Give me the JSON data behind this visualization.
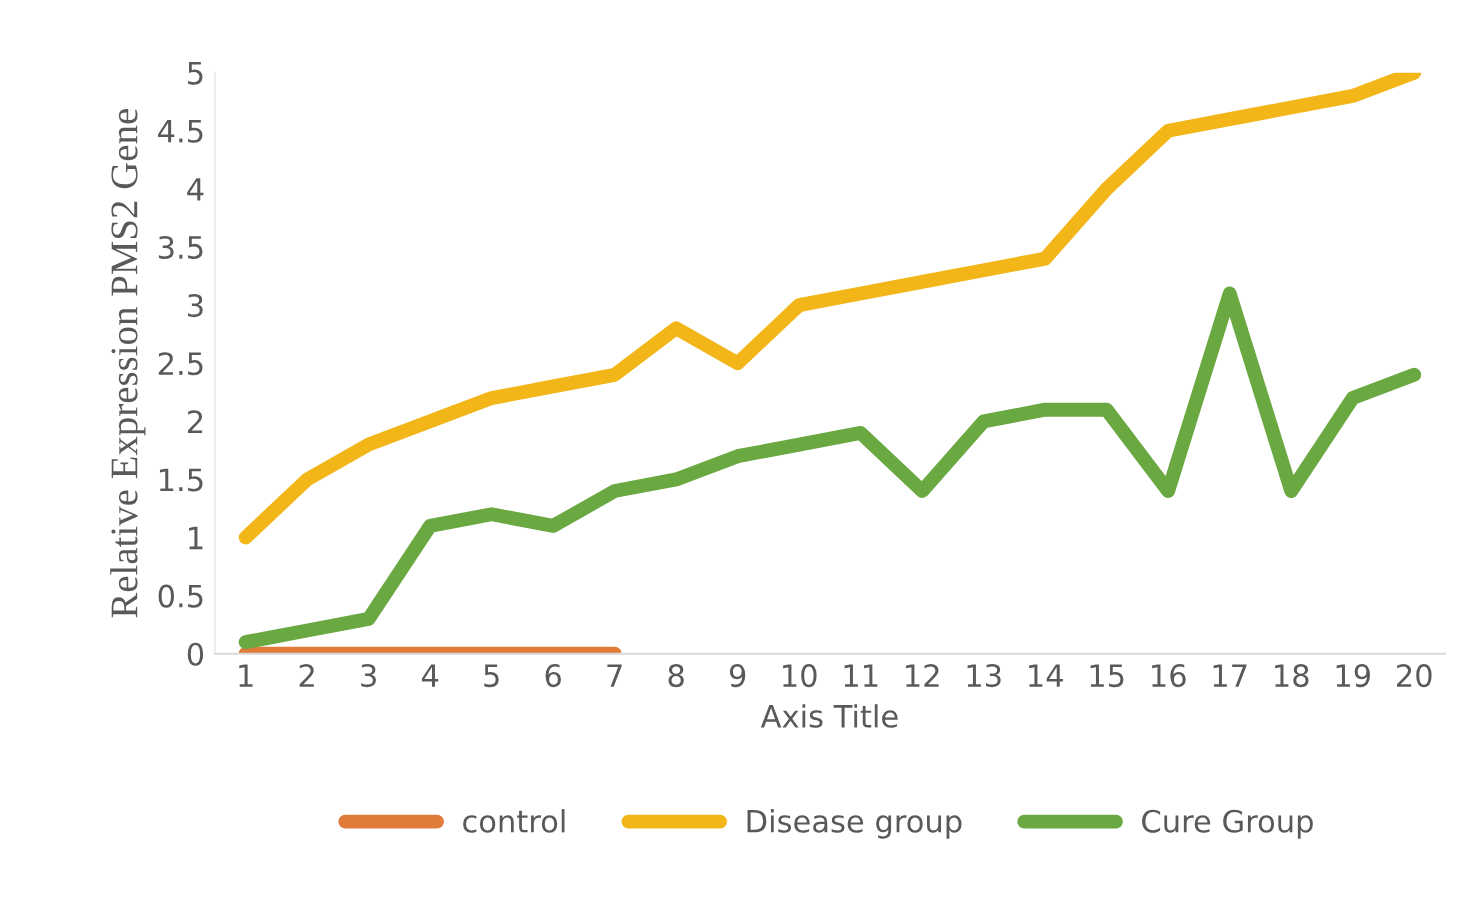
{
  "chart_data": {
    "type": "line",
    "xlabel": "Axis Title",
    "ylabel": "Relative Expression PMS2 Gene",
    "categories": [
      "1",
      "2",
      "3",
      "4",
      "5",
      "6",
      "7",
      "8",
      "9",
      "10",
      "11",
      "12",
      "13",
      "14",
      "15",
      "16",
      "17",
      "18",
      "19",
      "20"
    ],
    "series": [
      {
        "name": "control",
        "color": "#e07b39",
        "values": [
          0,
          0,
          0,
          0,
          0,
          0,
          0,
          null,
          null,
          null,
          null,
          null,
          null,
          null,
          null,
          null,
          null,
          null,
          null,
          null
        ]
      },
      {
        "name": "Disease group",
        "color": "#f2b619",
        "values": [
          1.0,
          1.5,
          1.8,
          2.0,
          2.2,
          2.3,
          2.4,
          2.8,
          2.5,
          3.0,
          3.1,
          3.2,
          3.3,
          3.4,
          4.0,
          4.5,
          4.6,
          4.7,
          4.8,
          5.0
        ]
      },
      {
        "name": "Cure Group",
        "color": "#6aa842",
        "values": [
          0.1,
          0.2,
          0.3,
          1.1,
          1.2,
          1.1,
          1.4,
          1.5,
          1.7,
          1.8,
          1.9,
          1.4,
          2.0,
          2.1,
          2.1,
          1.4,
          3.1,
          1.4,
          2.2,
          2.4
        ]
      }
    ],
    "ylim": [
      0,
      5
    ],
    "yticks": [
      0,
      {
        "value": 0.5,
        "label": "0.5"
      },
      1,
      {
        "value": 1.5,
        "label": "1.5"
      },
      2,
      {
        "value": 2.5,
        "label": "2.5"
      },
      3,
      {
        "value": 3.5,
        "label": "3.5"
      },
      4,
      {
        "value": 4.5,
        "label": "4.5"
      },
      5
    ],
    "grid": false,
    "legend": "bottom",
    "marker": "none",
    "line_style": "solid"
  }
}
